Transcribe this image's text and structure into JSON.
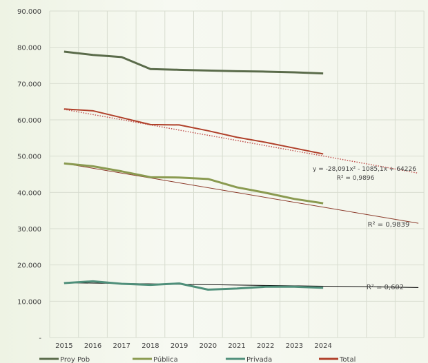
{
  "chart_data": {
    "type": "line",
    "title": "",
    "xlabel": "",
    "ylabel": "",
    "categories": [
      "2015",
      "2016",
      "2017",
      "2018",
      "2019",
      "2020",
      "2021",
      "2022",
      "2023",
      "2024"
    ],
    "extra_periods": 3,
    "ylim": [
      0,
      90000
    ],
    "yticks": [
      "-",
      "10.000",
      "20.000",
      "30.000",
      "40.000",
      "50.000",
      "60.000",
      "70.000",
      "80.000",
      "90.000"
    ],
    "grid": true,
    "legend_position": "bottom",
    "series": [
      {
        "name": "Proy Pob",
        "color": "#5a6b4a",
        "values": [
          78800,
          77900,
          77300,
          74000,
          73800,
          73600,
          73400,
          73300,
          73100,
          72800
        ]
      },
      {
        "name": "Pública",
        "color": "#8a9a50",
        "values": [
          48000,
          47200,
          45800,
          44200,
          44100,
          43700,
          41400,
          39900,
          38200,
          37000
        ]
      },
      {
        "name": "Privada",
        "color": "#4f8f7a",
        "values": [
          15000,
          15500,
          14800,
          14500,
          14900,
          13200,
          13500,
          14000,
          14000,
          13700
        ]
      },
      {
        "name": "Total",
        "color": "#b0402a",
        "values": [
          63000,
          62500,
          60600,
          58700,
          58600,
          57000,
          55200,
          53800,
          52200,
          50600
        ]
      }
    ],
    "trendlines": [
      {
        "series": "Total",
        "style": "dotted",
        "color": "#c0504d",
        "start": 62900,
        "end": 45300,
        "equation": "y = -28,091x² - 1085,1x + 64226",
        "r2": "R² = 0,9896"
      },
      {
        "series": "Pública",
        "style": "solid",
        "color": "#8b3a2a",
        "start": 48000,
        "end": 31500,
        "r2": "R² = 0,9839"
      },
      {
        "series": "Privada",
        "style": "solid",
        "color": "#000000",
        "start": 15100,
        "end": 13800,
        "r2": "R² = 0,602"
      }
    ]
  }
}
